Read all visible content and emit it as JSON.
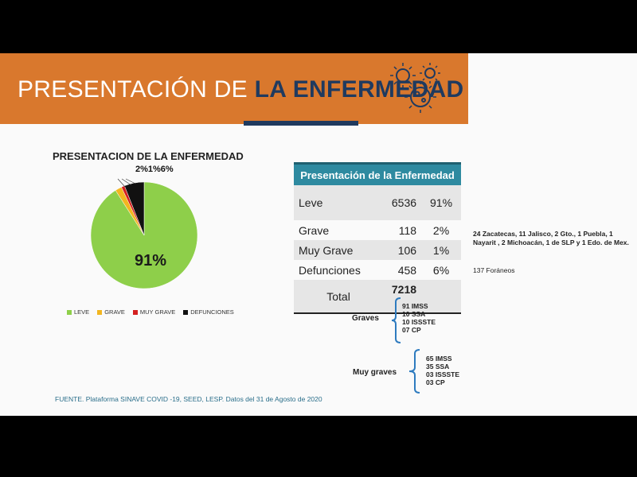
{
  "header": {
    "title_light": "PRESENTACIÓN DE ",
    "title_bold": "LA ENFERMEDAD",
    "virus_icon": "virus-icon",
    "colors": {
      "bar": "#d9782d",
      "navy": "#1f3a5f"
    }
  },
  "chart_data": {
    "type": "pie",
    "title": "PRESENTACION DE LA ENFERMEDAD",
    "categories": [
      "LEVE",
      "GRAVE",
      "MUY GRAVE",
      "DEFUNCIONES"
    ],
    "values": [
      91,
      2,
      1,
      6
    ],
    "colors": [
      "#8ecf4a",
      "#f2b620",
      "#d42020",
      "#111111"
    ],
    "data_labels": [
      "91%",
      "2%",
      "1%",
      "6%"
    ],
    "top_labels": "2%1%6%",
    "legend_position": "bottom"
  },
  "table": {
    "header": "Presentación de la Enfermedad",
    "rows": [
      {
        "label": "Leve",
        "value": "6536",
        "pct": "91%"
      },
      {
        "label": "Grave",
        "value": "118",
        "pct": "2%"
      },
      {
        "label": "Muy Grave",
        "value": "106",
        "pct": "1%"
      },
      {
        "label": "Defunciones",
        "value": "458",
        "pct": "6%"
      },
      {
        "label": "Total",
        "value": "7218",
        "pct": ""
      }
    ]
  },
  "notes": {
    "detail": "24 Zacatecas, 11 Jalisco, 2 Gto., 1 Puebla, 1 Nayarit , 2 Michoacán, 1 de SLP y 1 Edo. de Mex.",
    "foraneos": "137 Foráneos"
  },
  "graves": {
    "label": "Graves",
    "items": [
      "91 IMSS",
      "10 SSA",
      "10 ISSSTE",
      "07 CP"
    ]
  },
  "muy_graves": {
    "label": "Muy graves",
    "items": [
      "65 IMSS",
      "35 SSA",
      "03 ISSSTE",
      "03 CP"
    ]
  },
  "source": "FUENTE. Plataforma SINAVE COVID -19, SEED, LESP. Datos del 31 de Agosto de 2020"
}
